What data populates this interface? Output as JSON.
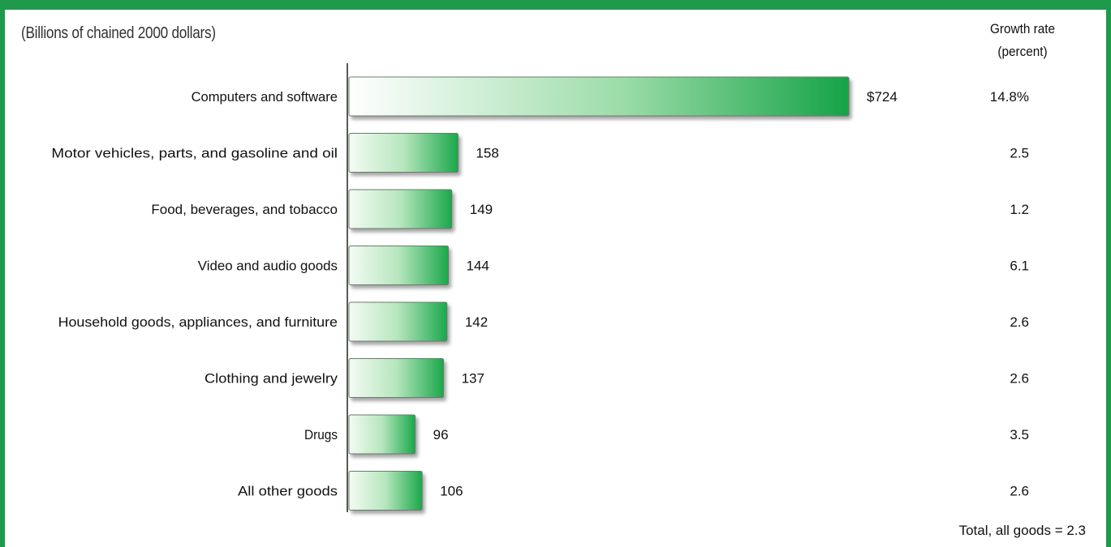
{
  "chart_data": {
    "type": "bar",
    "orientation": "horizontal",
    "title": "",
    "unit_label": "(Billions of chained 2000 dollars)",
    "categories": [
      "Computers and software",
      "Motor vehicles, parts, and gasoline and oil",
      "Food, beverages, and tobacco",
      "Video and audio goods",
      "Household goods, appliances, and furniture",
      "Clothing and jewelry",
      "Drugs",
      "All other goods"
    ],
    "values": [
      724,
      158,
      149,
      144,
      142,
      137,
      96,
      106
    ],
    "value_labels": [
      "$724",
      "158",
      "149",
      "144",
      "142",
      "137",
      "96",
      "106"
    ],
    "growth_rate_header": [
      "Growth rate",
      "(percent)"
    ],
    "growth_rates": [
      "14.8%",
      "2.5",
      "1.2",
      "6.1",
      "2.6",
      "2.6",
      "3.5",
      "2.6"
    ],
    "total_note": "Total, all goods = 2.3",
    "xlim": [
      0,
      724
    ],
    "grid": false,
    "colors": {
      "frame": "#1e9a4a",
      "bar_dark": "#18a64a",
      "bar_light": "#ffffff",
      "bar_border": "#6a7c6a"
    }
  }
}
